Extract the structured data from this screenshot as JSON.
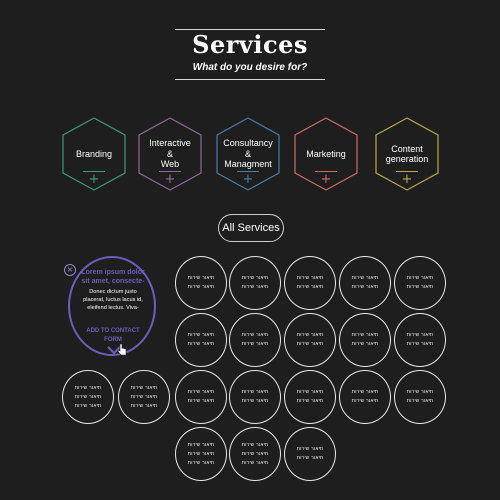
{
  "header": {
    "title": "Services",
    "subtitle": "What do you desire for?"
  },
  "services": [
    {
      "label": "Branding",
      "color": "#3d9a78",
      "plus": "+"
    },
    {
      "label": "Interactive\n&\nWeb",
      "color": "#8a6a9a",
      "plus": "+"
    },
    {
      "label": "Consultancy\n&\nManagment",
      "color": "#4e7aa6",
      "plus": "+"
    },
    {
      "label": "Marketing",
      "color": "#d06a6a",
      "plus": "+"
    },
    {
      "label": "Content\ngeneration",
      "color": "#b9a94a",
      "plus": "+"
    }
  ],
  "all_services_label": "All Services",
  "expanded_card": {
    "close": "×",
    "title": "Lorem ipsum dolor sit amet, consecte-",
    "body": "Donec dictum justo placerat, luctus lacus id, eleifend lectus. Viva-",
    "cta": "ADD TO CONTACT FORM",
    "accent": "#6a5fb8"
  },
  "circle_text_a": "תיאור שירות\nתיאור שירות",
  "circle_text_b": "תיאור שירות\nתיאור שירות\nתיאור שירות",
  "grid": {
    "row1": [
      "תיאור שירות\nתיאור שירות",
      "תיאור שירות\nתיאור שירות",
      "תיאור שירות\nתיאור שירות",
      "תיאור שירות\nתיאור שירות",
      "תיאור שירות\nתיאור שירות"
    ],
    "row2": [
      "תיאור שירות\nתיאור שירות",
      "תיאור שירות\nתיאור שירות",
      "תיאור שירות\nתיאור שירות",
      "תיאור שירות\nתיאור שירות",
      "תיאור שירות\nתיאור שירות"
    ],
    "row3": [
      "תיאור שירות\nתיאור שירות\nתיאור שירות",
      "תיאור שירות\nתיאור שירות\nתיאור שירות",
      "תיאור שירות\nתיאור שירות",
      "תיאור שירות\nתיאור שירות",
      "תיאור שירות\nתיאור שירות",
      "תיאור שירות\nתיאור שירות",
      "תיאור שירות\nתיאור שירות"
    ],
    "row4": [
      "תיאור שירות\nתיאור שירות\nתיאור שירות",
      "תיאור שירות\nתיאור שירות\nתיאור שירות",
      "תיאור שירות\nתיאור שירות"
    ]
  }
}
